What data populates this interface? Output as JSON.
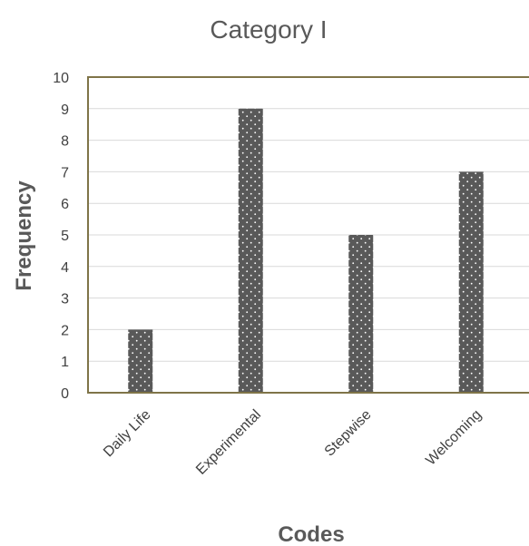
{
  "chart_data": {
    "type": "bar",
    "title": "Category I",
    "xlabel": "Codes",
    "ylabel": "Frequency",
    "categories": [
      "Daily Life",
      "Experimental",
      "Stepwise",
      "Welcoming"
    ],
    "values": [
      2,
      9,
      5,
      7
    ],
    "ylim": [
      0,
      10
    ],
    "yticks": [
      0,
      1,
      2,
      3,
      4,
      5,
      6,
      7,
      8,
      9,
      10
    ],
    "grid": true,
    "legend": "none",
    "colors": {
      "bar": "#595959",
      "bar_dots": "#ffffff",
      "gridline": "#d9d9d9",
      "plot_border": "#7f7448",
      "text": "#595959"
    }
  }
}
